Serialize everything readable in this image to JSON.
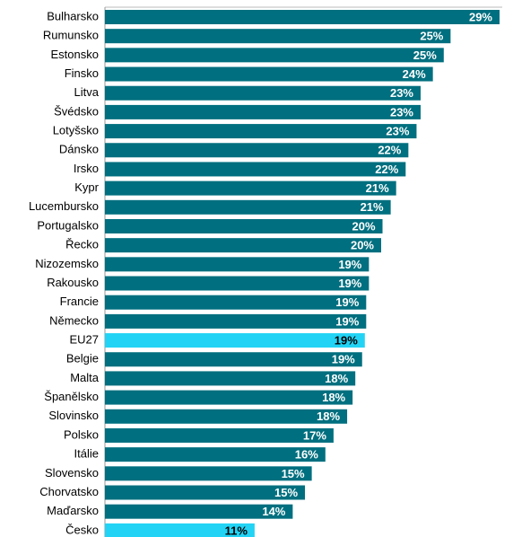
{
  "chart_data": {
    "type": "bar",
    "orientation": "horizontal",
    "categories": [
      "Bulharsko",
      "Rumunsko",
      "Estonsko",
      "Finsko",
      "Litva",
      "Švédsko",
      "Lotyšsko",
      "Dánsko",
      "Irsko",
      "Kypr",
      "Lucembursko",
      "Portugalsko",
      "Řecko",
      "Nizozemsko",
      "Rakousko",
      "Francie",
      "Německo",
      "EU27",
      "Belgie",
      "Malta",
      "Španělsko",
      "Slovinsko",
      "Polsko",
      "Itálie",
      "Slovensko",
      "Chorvatsko",
      "Maďarsko",
      "Česko"
    ],
    "values": [
      29.0,
      25.4,
      24.9,
      24.1,
      23.2,
      23.2,
      22.9,
      22.3,
      22.1,
      21.4,
      21.0,
      20.4,
      20.3,
      19.4,
      19.4,
      19.2,
      19.2,
      19.1,
      18.9,
      18.4,
      18.2,
      17.8,
      16.8,
      16.2,
      15.2,
      14.7,
      13.8,
      11.0
    ],
    "value_labels": [
      "29%",
      "25%",
      "25%",
      "24%",
      "23%",
      "23%",
      "23%",
      "22%",
      "22%",
      "21%",
      "21%",
      "20%",
      "20%",
      "19%",
      "19%",
      "19%",
      "19%",
      "19%",
      "19%",
      "18%",
      "18%",
      "18%",
      "17%",
      "16%",
      "15%",
      "15%",
      "14%",
      "11%"
    ],
    "colors": [
      "#006f7f",
      "#006f7f",
      "#006f7f",
      "#006f7f",
      "#006f7f",
      "#006f7f",
      "#006f7f",
      "#006f7f",
      "#006f7f",
      "#006f7f",
      "#006f7f",
      "#006f7f",
      "#006f7f",
      "#006f7f",
      "#006f7f",
      "#006f7f",
      "#006f7f",
      "#22d3f5",
      "#006f7f",
      "#006f7f",
      "#006f7f",
      "#006f7f",
      "#006f7f",
      "#006f7f",
      "#006f7f",
      "#006f7f",
      "#006f7f",
      "#22d3f5"
    ],
    "value_label_colors": [
      "#ffffff",
      "#ffffff",
      "#ffffff",
      "#ffffff",
      "#ffffff",
      "#ffffff",
      "#ffffff",
      "#ffffff",
      "#ffffff",
      "#ffffff",
      "#ffffff",
      "#ffffff",
      "#ffffff",
      "#ffffff",
      "#ffffff",
      "#ffffff",
      "#ffffff",
      "#000000",
      "#ffffff",
      "#ffffff",
      "#ffffff",
      "#ffffff",
      "#ffffff",
      "#ffffff",
      "#ffffff",
      "#ffffff",
      "#ffffff",
      "#000000"
    ]
  }
}
